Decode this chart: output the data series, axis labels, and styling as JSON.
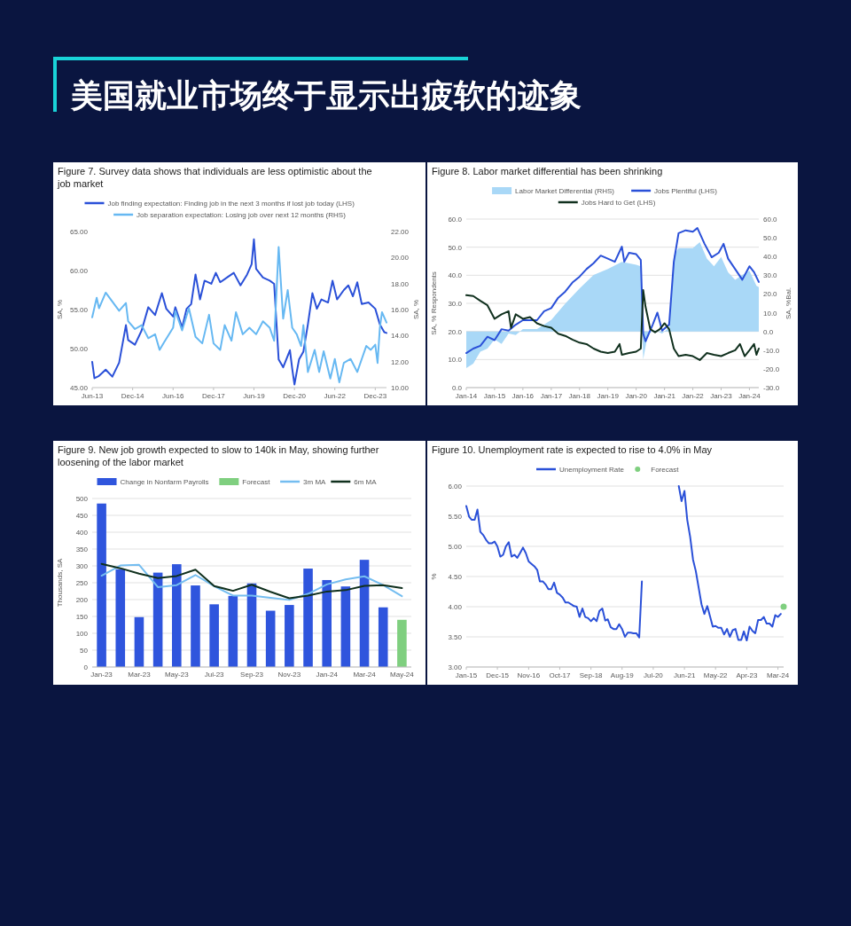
{
  "chart_data": [
    {
      "type": "other",
      "title": "美国就业市场终于显示出疲软的迹象"
    },
    {
      "type": "line",
      "title": "Figure 7. Survey data shows that individuals are less optimistic about the job market",
      "ylabel": "SA, %",
      "y2label": "SA, %",
      "legend": "top",
      "xlim": [
        "2013-06",
        "2024-05"
      ],
      "xticks": [
        {
          "value": "2013-06",
          "label": "Jun-13"
        },
        {
          "value": "2014-12",
          "label": "Dec-14"
        },
        {
          "value": "2016-06",
          "label": "Jun-16"
        },
        {
          "value": "2017-12",
          "label": "Dec-17"
        },
        {
          "value": "2019-06",
          "label": "Jun-19"
        },
        {
          "value": "2020-12",
          "label": "Dec-20"
        },
        {
          "value": "2022-06",
          "label": "Jun-22"
        },
        {
          "value": "2023-12",
          "label": "Dec-23"
        }
      ],
      "ylim": [
        45,
        65
      ],
      "yticks": [
        {
          "value": 45,
          "label": "45.00"
        },
        {
          "value": 50,
          "label": "50.00"
        },
        {
          "value": 55,
          "label": "55.00"
        },
        {
          "value": 60,
          "label": "60.00"
        },
        {
          "value": 65,
          "label": "65.00"
        }
      ],
      "y2lim": [
        10,
        22
      ],
      "y2ticks": [
        {
          "value": 10,
          "label": "10.00"
        },
        {
          "value": 12,
          "label": "12.00"
        },
        {
          "value": 14,
          "label": "14.00"
        },
        {
          "value": 16,
          "label": "16.00"
        },
        {
          "value": 18,
          "label": "18.00"
        },
        {
          "value": 20,
          "label": "20.00"
        },
        {
          "value": 22,
          "label": "22.00"
        }
      ],
      "series": [
        {
          "name": "Job finding expectation: Finding job in the next 3 months if lost job today (LHS)",
          "color": "#2a50d8",
          "axis": "y",
          "x": [
            "2013-06",
            "2013-07",
            "2013-09",
            "2013-12",
            "2014-03",
            "2014-06",
            "2014-09",
            "2014-10",
            "2015-01",
            "2015-04",
            "2015-07",
            "2015-10",
            "2016-01",
            "2016-03",
            "2016-06",
            "2016-07",
            "2016-10",
            "2016-12",
            "2017-02",
            "2017-04",
            "2017-06",
            "2017-08",
            "2017-11",
            "2018-01",
            "2018-03",
            "2018-06",
            "2018-09",
            "2018-12",
            "2019-03",
            "2019-05",
            "2019-06",
            "2019-07",
            "2019-10",
            "2020-01",
            "2020-03",
            "2020-05",
            "2020-07",
            "2020-10",
            "2020-11",
            "2020-12",
            "2021-02",
            "2021-04",
            "2021-06",
            "2021-08",
            "2021-10",
            "2021-12",
            "2022-03",
            "2022-05",
            "2022-07",
            "2022-10",
            "2022-12",
            "2023-02",
            "2023-04",
            "2023-06",
            "2023-09",
            "2023-12",
            "2024-02",
            "2024-04",
            "2024-05"
          ],
          "values": [
            48.3,
            46.2,
            46.5,
            47.3,
            46.4,
            48.2,
            53.0,
            51.1,
            50.5,
            52.3,
            55.3,
            54.3,
            57.1,
            55.1,
            54.1,
            55.3,
            52.7,
            55.1,
            55.7,
            59.5,
            56.3,
            58.7,
            58.3,
            59.7,
            58.5,
            59.1,
            59.7,
            58.1,
            59.5,
            60.8,
            64.0,
            60.2,
            59.1,
            58.7,
            58.3,
            48.6,
            47.6,
            49.8,
            47.4,
            45.4,
            48.6,
            49.6,
            53.1,
            57.1,
            55.1,
            56.3,
            55.9,
            58.7,
            56.3,
            57.5,
            58.1,
            56.7,
            58.5,
            55.7,
            55.9,
            55.1,
            53.1,
            52.1,
            52.0
          ]
        },
        {
          "name": "Job separation expectation: Losing job over next 12 months (RHS)",
          "color": "#66b8f2",
          "axis": "y2",
          "x": [
            "2013-06",
            "2013-08",
            "2013-09",
            "2013-12",
            "2014-06",
            "2014-09",
            "2014-10",
            "2015-01",
            "2015-04",
            "2015-07",
            "2015-10",
            "2015-12",
            "2016-02",
            "2016-06",
            "2016-07",
            "2016-10",
            "2017-01",
            "2017-04",
            "2017-07",
            "2017-10",
            "2017-12",
            "2018-03",
            "2018-05",
            "2018-08",
            "2018-10",
            "2019-01",
            "2019-04",
            "2019-07",
            "2019-10",
            "2020-01",
            "2020-03",
            "2020-05",
            "2020-07",
            "2020-09",
            "2020-11",
            "2021-01",
            "2021-03",
            "2021-04",
            "2021-06",
            "2021-09",
            "2021-11",
            "2022-01",
            "2022-04",
            "2022-06",
            "2022-08",
            "2022-10",
            "2023-01",
            "2023-04",
            "2023-06",
            "2023-08",
            "2023-10",
            "2023-12",
            "2024-01",
            "2024-02",
            "2024-03",
            "2024-05"
          ],
          "values": [
            15.4,
            16.9,
            16.1,
            17.3,
            15.9,
            16.5,
            15.1,
            14.5,
            14.8,
            13.8,
            14.1,
            12.9,
            13.5,
            14.6,
            15.9,
            14.4,
            16.1,
            13.9,
            13.4,
            15.6,
            13.4,
            12.9,
            14.8,
            13.6,
            15.8,
            14.1,
            14.6,
            14.1,
            15.1,
            14.6,
            13.6,
            20.8,
            15.3,
            17.5,
            14.6,
            14.1,
            13.2,
            14.8,
            11.2,
            12.9,
            11.2,
            12.8,
            10.7,
            12.2,
            10.4,
            11.9,
            12.2,
            11.2,
            12.2,
            13.2,
            12.9,
            13.3,
            11.9,
            14.6,
            15.8,
            15.0
          ]
        }
      ]
    },
    {
      "type": "line",
      "title": "Figure 8. Labor market differential has been shrinking",
      "ylabel": "SA, % Respondents",
      "y2label": "SA, %Bal.",
      "legend": "top",
      "grid": "y",
      "xlim": [
        "2014-01",
        "2024-05"
      ],
      "xticks": [
        {
          "value": "2014-01",
          "label": "Jan-14"
        },
        {
          "value": "2015-01",
          "label": "Jan-15"
        },
        {
          "value": "2016-01",
          "label": "Jan-16"
        },
        {
          "value": "2017-01",
          "label": "Jan-17"
        },
        {
          "value": "2018-01",
          "label": "Jan-18"
        },
        {
          "value": "2019-01",
          "label": "Jan-19"
        },
        {
          "value": "2020-01",
          "label": "Jan-20"
        },
        {
          "value": "2021-01",
          "label": "Jan-21"
        },
        {
          "value": "2022-01",
          "label": "Jan-22"
        },
        {
          "value": "2023-01",
          "label": "Jan-23"
        },
        {
          "value": "2024-01",
          "label": "Jan-24"
        }
      ],
      "ylim": [
        0,
        60
      ],
      "yticks": [
        {
          "value": 0,
          "label": "0.0"
        },
        {
          "value": 10,
          "label": "10.0"
        },
        {
          "value": 20,
          "label": "20.0"
        },
        {
          "value": 30,
          "label": "30.0"
        },
        {
          "value": 40,
          "label": "40.0"
        },
        {
          "value": 50,
          "label": "50.0"
        },
        {
          "value": 60,
          "label": "60.0"
        }
      ],
      "y2lim": [
        -30,
        60
      ],
      "y2ticks": [
        {
          "value": -30,
          "label": "-30.0"
        },
        {
          "value": -20,
          "label": "-20.0"
        },
        {
          "value": -10,
          "label": "-10.0"
        },
        {
          "value": 0,
          "label": "0.0"
        },
        {
          "value": 10,
          "label": "10.0"
        },
        {
          "value": 20,
          "label": "20.0"
        },
        {
          "value": 30,
          "label": "30.0"
        },
        {
          "value": 40,
          "label": "40.0"
        },
        {
          "value": 50,
          "label": "50.0"
        },
        {
          "value": 60,
          "label": "60.0"
        }
      ],
      "series": [
        {
          "name": "Labor Market Differential (RHS)",
          "type": "area",
          "color": "#a9d8f7",
          "axis": "y2",
          "x": [
            "2014-01",
            "2014-04",
            "2014-07",
            "2014-10",
            "2015-01",
            "2015-04",
            "2015-07",
            "2015-10",
            "2016-01",
            "2016-07",
            "2017-01",
            "2017-07",
            "2018-01",
            "2018-07",
            "2019-01",
            "2019-07",
            "2020-01",
            "2020-03",
            "2020-04",
            "2020-06",
            "2020-09",
            "2020-12",
            "2021-03",
            "2021-05",
            "2021-07",
            "2022-01",
            "2022-04",
            "2022-07",
            "2022-10",
            "2023-01",
            "2023-04",
            "2023-07",
            "2023-10",
            "2024-01",
            "2024-04",
            "2024-05"
          ],
          "values": [
            -19.6,
            -17.2,
            -10.8,
            -9.1,
            -4.3,
            -6.7,
            -1.1,
            -1.9,
            1.3,
            1.3,
            6.1,
            14.9,
            22.9,
            30.1,
            33.3,
            37.2,
            35.6,
            34.8,
            -15.0,
            -1.1,
            0.5,
            -1.1,
            2.1,
            40.5,
            44.5,
            44.5,
            47.7,
            38.9,
            34.8,
            39.7,
            31.6,
            27.6,
            30.1,
            32.4,
            24.4,
            23.6
          ]
        },
        {
          "name": "Jobs Plentiful (LHS)",
          "color": "#2a50d8",
          "axis": "y",
          "x": [
            "2014-01",
            "2014-04",
            "2014-07",
            "2014-10",
            "2015-01",
            "2015-04",
            "2015-07",
            "2015-10",
            "2016-01",
            "2016-07",
            "2016-10",
            "2017-01",
            "2017-04",
            "2017-07",
            "2017-10",
            "2018-01",
            "2018-04",
            "2018-07",
            "2018-10",
            "2019-01",
            "2019-04",
            "2019-07",
            "2019-08",
            "2019-10",
            "2020-01",
            "2020-03",
            "2020-04",
            "2020-05",
            "2020-08",
            "2020-10",
            "2020-12",
            "2021-03",
            "2021-05",
            "2021-07",
            "2021-10",
            "2022-01",
            "2022-03",
            "2022-06",
            "2022-09",
            "2022-12",
            "2023-02",
            "2023-04",
            "2023-07",
            "2023-10",
            "2024-01",
            "2024-03",
            "2024-05"
          ],
          "values": [
            12.3,
            13.9,
            14.9,
            18.1,
            16.9,
            20.8,
            20.3,
            22.4,
            24.0,
            24.0,
            27.2,
            28.3,
            32.0,
            34.2,
            37.4,
            39.5,
            42.2,
            44.3,
            47.0,
            45.9,
            44.8,
            50.2,
            44.8,
            48.0,
            47.5,
            45.4,
            19.2,
            16.5,
            22.4,
            26.7,
            20.3,
            22.4,
            44.8,
            55.0,
            56.0,
            55.5,
            56.8,
            51.2,
            46.4,
            48.0,
            51.2,
            45.9,
            42.2,
            38.4,
            43.2,
            41.1,
            37.6
          ]
        },
        {
          "name": "Jobs Hard to Get (LHS)",
          "color": "#10301e",
          "axis": "y",
          "x": [
            "2014-01",
            "2014-04",
            "2014-07",
            "2014-10",
            "2015-01",
            "2015-04",
            "2015-07",
            "2015-08",
            "2015-10",
            "2016-01",
            "2016-04",
            "2016-07",
            "2016-10",
            "2017-01",
            "2017-04",
            "2017-07",
            "2017-10",
            "2018-01",
            "2018-04",
            "2018-07",
            "2018-10",
            "2019-01",
            "2019-04",
            "2019-06",
            "2019-07",
            "2019-10",
            "2020-01",
            "2020-03",
            "2020-04",
            "2020-05",
            "2020-07",
            "2020-09",
            "2020-11",
            "2021-01",
            "2021-03",
            "2021-05",
            "2021-07",
            "2021-10",
            "2022-01",
            "2022-04",
            "2022-07",
            "2022-10",
            "2023-01",
            "2023-04",
            "2023-07",
            "2023-09",
            "2023-11",
            "2024-01",
            "2024-03",
            "2024-04",
            "2024-05"
          ],
          "values": [
            32.9,
            32.6,
            30.9,
            29.3,
            24.5,
            26.1,
            27.2,
            21.3,
            26.1,
            24.5,
            25.1,
            22.9,
            21.9,
            21.3,
            19.2,
            18.4,
            17.1,
            16.0,
            15.5,
            13.9,
            12.8,
            12.3,
            12.8,
            15.5,
            11.7,
            12.3,
            12.8,
            13.9,
            34.7,
            28.8,
            20.8,
            19.7,
            20.8,
            22.9,
            20.8,
            13.9,
            11.2,
            11.7,
            11.2,
            9.8,
            12.3,
            11.7,
            11.2,
            12.3,
            13.3,
            15.5,
            11.2,
            13.3,
            15.5,
            11.7,
            13.9
          ]
        }
      ]
    },
    {
      "type": "bar",
      "title": "Figure 9. New job growth expected to slow to 140k in May, showing further loosening of the labor market",
      "ylabel": "Thousands, SA",
      "legend": "top",
      "grid": "y",
      "categories": [
        "Jan-23",
        null,
        "Mar-23",
        null,
        "May-23",
        null,
        "Jul-23",
        null,
        "Sep-23",
        null,
        "Nov-23",
        null,
        "Jan-24",
        null,
        "Mar-24",
        null,
        "May-24"
      ],
      "ylim": [
        0,
        500
      ],
      "yticks": [
        0,
        50,
        100,
        150,
        200,
        250,
        300,
        350,
        400,
        450,
        500
      ],
      "series": [
        {
          "name": "Change in Nonfarm Payrolls",
          "color": "#2f55dd",
          "values": [
            485,
            290,
            148,
            280,
            305,
            242,
            186,
            211,
            248,
            167,
            184,
            292,
            258,
            239,
            318,
            177,
            null
          ]
        },
        {
          "name": "Forecast",
          "color": "#7fcf7f",
          "values": [
            null,
            null,
            null,
            null,
            null,
            null,
            null,
            null,
            null,
            null,
            null,
            null,
            null,
            null,
            null,
            null,
            140
          ]
        },
        {
          "name": "3m MA",
          "type": "line",
          "color": "#74bdf0",
          "values": [
            271,
            301,
            303,
            237,
            243,
            273,
            240,
            212,
            212,
            205,
            199,
            217,
            245,
            260,
            269,
            243,
            210
          ]
        },
        {
          "name": "6m MA",
          "type": "line",
          "color": "#10301e",
          "values": [
            306,
            293,
            277,
            264,
            270,
            289,
            240,
            226,
            244,
            223,
            204,
            212,
            224,
            228,
            241,
            243,
            234
          ]
        }
      ]
    },
    {
      "type": "line",
      "title": "Figure 10. Unemployment rate is expected to rise to 4.0% in May",
      "ylabel": "%",
      "legend": "top",
      "grid": "y",
      "xlim": [
        "2015-01",
        "2024-05"
      ],
      "xticks": [
        {
          "value": "2015-01",
          "label": "Jan-15"
        },
        {
          "value": "2015-12",
          "label": "Dec-15"
        },
        {
          "value": "2016-11",
          "label": "Nov-16"
        },
        {
          "value": "2017-10",
          "label": "Oct-17"
        },
        {
          "value": "2018-09",
          "label": "Sep-18"
        },
        {
          "value": "2019-08",
          "label": "Aug-19"
        },
        {
          "value": "2020-07",
          "label": "Jul-20"
        },
        {
          "value": "2021-06",
          "label": "Jun-21"
        },
        {
          "value": "2022-05",
          "label": "May-22"
        },
        {
          "value": "2023-04",
          "label": "Apr-23"
        },
        {
          "value": "2024-03",
          "label": "Mar-24"
        }
      ],
      "ylim": [
        3,
        6
      ],
      "yticks": [
        {
          "value": 3,
          "label": "3.00"
        },
        {
          "value": 3.5,
          "label": "3.50"
        },
        {
          "value": 4,
          "label": "4.00"
        },
        {
          "value": 4.5,
          "label": "4.50"
        },
        {
          "value": 5,
          "label": "5.00"
        },
        {
          "value": 5.5,
          "label": "5.50"
        },
        {
          "value": 6,
          "label": "6.00"
        }
      ],
      "x": [
        "2015-01",
        "2015-02",
        "2015-03",
        "2015-04",
        "2015-05",
        "2015-06",
        "2015-07",
        "2015-08",
        "2015-09",
        "2015-10",
        "2015-11",
        "2015-12",
        "2016-01",
        "2016-02",
        "2016-03",
        "2016-04",
        "2016-05",
        "2016-06",
        "2016-07",
        "2016-08",
        "2016-09",
        "2016-10",
        "2016-11",
        "2016-12",
        "2017-01",
        "2017-02",
        "2017-03",
        "2017-04",
        "2017-05",
        "2017-06",
        "2017-07",
        "2017-08",
        "2017-09",
        "2017-10",
        "2017-11",
        "2017-12",
        "2018-01",
        "2018-02",
        "2018-03",
        "2018-04",
        "2018-05",
        "2018-06",
        "2018-07",
        "2018-08",
        "2018-09",
        "2018-10",
        "2018-11",
        "2018-12",
        "2019-01",
        "2019-02",
        "2019-03",
        "2019-04",
        "2019-05",
        "2019-06",
        "2019-07",
        "2019-08",
        "2019-09",
        "2019-10",
        "2019-11",
        "2019-12",
        "2020-01",
        "2020-02",
        "2020-03",
        "2020-04",
        "2020-05",
        "2020-06",
        "2020-07",
        "2020-08",
        "2020-09",
        "2020-10",
        "2020-11",
        "2020-12",
        "2021-01",
        "2021-02",
        "2021-03",
        "2021-04",
        "2021-05",
        "2021-06",
        "2021-07",
        "2021-08",
        "2021-09",
        "2021-10",
        "2021-11",
        "2021-12",
        "2022-01",
        "2022-02",
        "2022-03",
        "2022-04",
        "2022-05",
        "2022-06",
        "2022-07",
        "2022-08",
        "2022-09",
        "2022-10",
        "2022-11",
        "2022-12",
        "2023-01",
        "2023-02",
        "2023-03",
        "2023-04",
        "2023-05",
        "2023-06",
        "2023-07",
        "2023-08",
        "2023-09",
        "2023-10",
        "2023-11",
        "2023-12",
        "2024-01",
        "2024-02",
        "2024-03",
        "2024-04"
      ],
      "series": [
        {
          "name": "Unemployment Rate",
          "color": "#2a50d8",
          "values": [
            5.67,
            5.49,
            5.44,
            5.44,
            5.61,
            5.24,
            5.19,
            5.11,
            5.05,
            5.05,
            5.08,
            5.0,
            4.83,
            4.86,
            5.0,
            5.07,
            4.83,
            4.86,
            4.81,
            4.89,
            4.98,
            4.89,
            4.75,
            4.71,
            4.67,
            4.61,
            4.42,
            4.42,
            4.37,
            4.29,
            4.29,
            4.4,
            4.23,
            4.2,
            4.15,
            4.07,
            4.07,
            4.04,
            4.01,
            4.0,
            3.83,
            3.97,
            3.83,
            3.81,
            3.76,
            3.81,
            3.76,
            3.93,
            3.97,
            3.77,
            3.79,
            3.66,
            3.63,
            3.63,
            3.71,
            3.63,
            3.5,
            3.57,
            3.57,
            3.56,
            3.56,
            3.49,
            4.42,
            null,
            null,
            null,
            null,
            null,
            null,
            null,
            null,
            null,
            null,
            null,
            null,
            6.0,
            5.75,
            5.92,
            5.44,
            5.16,
            4.78,
            4.59,
            4.31,
            4.04,
            3.88,
            4.01,
            3.85,
            3.67,
            3.68,
            3.65,
            3.65,
            3.54,
            3.63,
            3.5,
            3.61,
            3.63,
            3.45,
            3.45,
            3.59,
            3.44,
            3.67,
            3.6,
            3.56,
            3.78,
            3.78,
            3.83,
            3.72,
            3.72,
            3.67,
            3.86,
            3.83,
            3.88
          ]
        },
        {
          "name": "Forecast",
          "type": "scatter",
          "marker": "circle",
          "color": "#7fcf7f",
          "x": [
            "2024-05"
          ],
          "values": [
            4.0
          ]
        }
      ]
    }
  ]
}
